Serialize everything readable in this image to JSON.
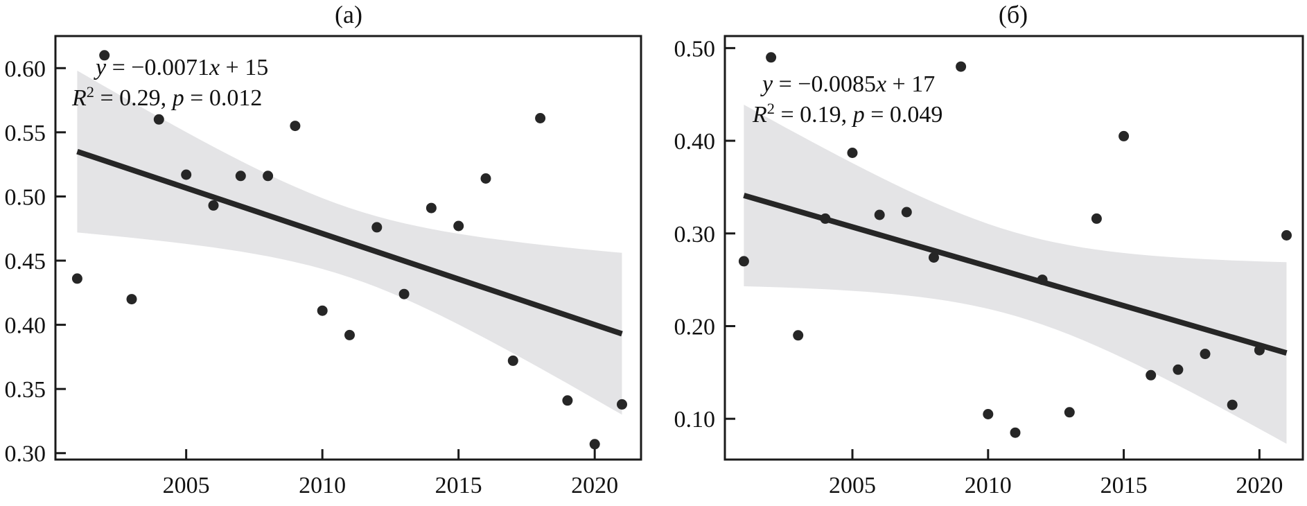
{
  "figure": {
    "background": "#ffffff",
    "colors": {
      "point": "#262626",
      "regression_line": "#262626",
      "confidence_band": "#e4e4e6",
      "frame": "#1a1a1a",
      "text": "#111111"
    }
  },
  "chart_data": [
    {
      "type": "scatter",
      "panel_label": "(а)",
      "title": "(а)",
      "xlabel": "",
      "ylabel": "",
      "grid": false,
      "legend": null,
      "x": [
        2001,
        2002,
        2003,
        2004,
        2005,
        2006,
        2007,
        2008,
        2009,
        2010,
        2011,
        2012,
        2013,
        2014,
        2015,
        2016,
        2017,
        2018,
        2019,
        2020,
        2021
      ],
      "y": [
        0.436,
        0.61,
        0.42,
        0.56,
        0.517,
        0.493,
        0.516,
        0.516,
        0.555,
        0.411,
        0.392,
        0.476,
        0.424,
        0.491,
        0.477,
        0.514,
        0.372,
        0.561,
        0.341,
        0.307,
        0.338
      ],
      "xlim": [
        2000.2,
        2021.7
      ],
      "ylim": [
        0.295,
        0.625
      ],
      "x_ticks": [
        {
          "v": 2005,
          "label": "2005"
        },
        {
          "v": 2010,
          "label": "2010"
        },
        {
          "v": 2015,
          "label": "2015"
        },
        {
          "v": 2020,
          "label": "2020"
        }
      ],
      "y_ticks": [
        {
          "v": 0.6,
          "label": "0.60"
        },
        {
          "v": 0.55,
          "label": "0.55"
        },
        {
          "v": 0.5,
          "label": "0.50"
        },
        {
          "v": 0.45,
          "label": "0.45"
        },
        {
          "v": 0.4,
          "label": "0.40"
        },
        {
          "v": 0.35,
          "label": "0.35"
        },
        {
          "v": 0.3,
          "label": "0.30"
        }
      ],
      "regression": {
        "equation_text": "y = −0.0071x + 15",
        "r_squared": 0.29,
        "p_value": 0.012,
        "stats_text": "R² = 0.29, p = 0.012",
        "x1": 2001,
        "y1": 0.535,
        "x2": 2021,
        "y2": 0.393
      },
      "ci_band": {
        "x_start": 2001,
        "x_end": 2021,
        "x_mid": 2011,
        "half_width_mid": 0.027,
        "spread": 4.74
      },
      "annotation_runs": {
        "line1": [
          {
            "t": "y",
            "i": true
          },
          {
            "t": " = −0.0071"
          },
          {
            "t": "x",
            "i": true
          },
          {
            "t": " + 15"
          }
        ],
        "line2": [
          {
            "t": "R",
            "i": true
          },
          {
            "t": "2",
            "sup": true
          },
          {
            "t": " = 0.29, "
          },
          {
            "t": "p",
            "i": true
          },
          {
            "t": " = 0.012"
          }
        ]
      }
    },
    {
      "type": "scatter",
      "panel_label": "(б)",
      "title": "(б)",
      "xlabel": "",
      "ylabel": "",
      "grid": false,
      "legend": null,
      "x": [
        2001,
        2002,
        2003,
        2004,
        2005,
        2006,
        2007,
        2008,
        2009,
        2010,
        2011,
        2012,
        2013,
        2014,
        2015,
        2016,
        2017,
        2018,
        2019,
        2020,
        2021
      ],
      "y": [
        0.27,
        0.49,
        0.19,
        0.316,
        0.387,
        0.32,
        0.323,
        0.274,
        0.48,
        0.105,
        0.085,
        0.25,
        0.107,
        0.316,
        0.405,
        0.147,
        0.153,
        0.17,
        0.115,
        0.174,
        0.298
      ],
      "xlim": [
        2000.3,
        2021.6
      ],
      "ylim": [
        0.056,
        0.513
      ],
      "x_ticks": [
        {
          "v": 2005,
          "label": "2005"
        },
        {
          "v": 2010,
          "label": "2010"
        },
        {
          "v": 2015,
          "label": "2015"
        },
        {
          "v": 2020,
          "label": "2020"
        }
      ],
      "y_ticks": [
        {
          "v": 0.5,
          "label": "0.50"
        },
        {
          "v": 0.4,
          "label": "0.40"
        },
        {
          "v": 0.3,
          "label": "0.30"
        },
        {
          "v": 0.2,
          "label": "0.20"
        },
        {
          "v": 0.1,
          "label": "0.10"
        }
      ],
      "regression": {
        "equation_text": "y = −0.0085x + 17",
        "r_squared": 0.19,
        "p_value": 0.049,
        "stats_text": "R² = 0.19, p = 0.049",
        "x1": 2001,
        "y1": 0.341,
        "x2": 2021,
        "y2": 0.171
      },
      "ci_band": {
        "x_start": 2001,
        "x_end": 2021,
        "x_mid": 2011,
        "half_width_mid": 0.045,
        "spread": 5.17
      },
      "annotation_runs": {
        "line1": [
          {
            "t": "y",
            "i": true
          },
          {
            "t": " = −0.0085"
          },
          {
            "t": "x",
            "i": true
          },
          {
            "t": " + 17"
          }
        ],
        "line2": [
          {
            "t": "R",
            "i": true
          },
          {
            "t": "2",
            "sup": true
          },
          {
            "t": " = 0.19, "
          },
          {
            "t": "p",
            "i": true
          },
          {
            "t": " = 0.049"
          }
        ]
      }
    }
  ]
}
